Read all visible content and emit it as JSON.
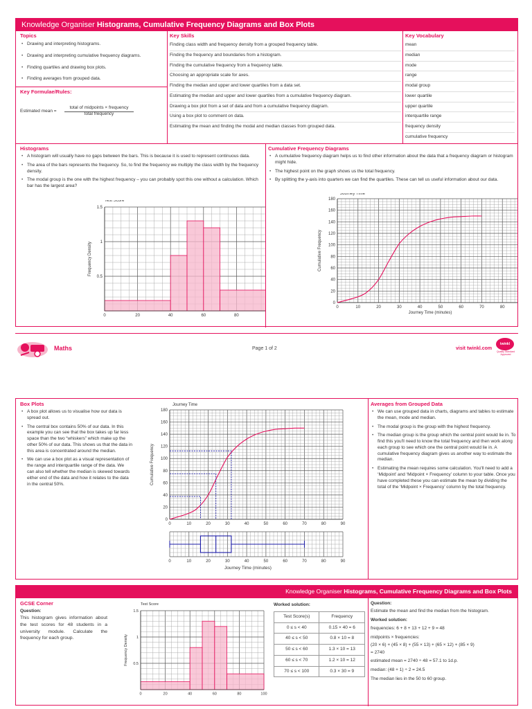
{
  "page1": {
    "title_pre": "Knowledge Organiser ",
    "title_bold": "Histograms, Cumulative Frequency Diagrams and Box Plots",
    "topics": {
      "heading": "Topics",
      "items": [
        "Drawing and interpreting histograms.",
        "Drawing and interpreting cumulative frequency diagrams.",
        "Finding quartiles and drawing box plots.",
        "Finding averages from grouped data."
      ]
    },
    "formulae": {
      "heading": "Key Formulae/Rules:",
      "lhs": "Estimated mean =",
      "numerator": "total of midpoints × frequency",
      "denominator": "total frequency"
    },
    "skills": {
      "heading": "Key Skills",
      "items": [
        "Finding class width and frequency density from a grouped frequency table.",
        "Finding the frequency and boundaries from a histogram.",
        "Finding the cumulative frequency from a frequency table.",
        "Choosing an appropriate scale for axes.",
        "Finding the median and upper and lower quartiles from a data set.",
        "Estimating the median and upper and lower quartiles from a cumulative frequency diagram.",
        "Drawing a box plot from a set of data and from a cumulative frequency diagram.",
        "Using a box plot to comment on data.",
        "Estimating the mean and finding the modal and median classes from grouped data."
      ]
    },
    "vocab": {
      "heading": "Key Vocabulary",
      "items": [
        "mean",
        "median",
        "mode",
        "range",
        "modal group",
        "lower quartile",
        "upper quartile",
        "interquartile range",
        "frequency density",
        "cumulative frequency"
      ]
    },
    "histograms": {
      "heading": "Histograms",
      "items": [
        "A histogram will usually have no gaps between the bars. This is because it is used to represent continuous data.",
        "The area of the bars represents the frequency. So, to find the frequency we multiply the class width by the frequency density.",
        "The modal group is the one with the highest frequency – you can probably spot this one without a calculation. Which bar has the largest area?"
      ]
    },
    "cumfreq": {
      "heading": "Cumulative Frequency Diagrams",
      "items": [
        "A cumulative frequency diagram helps us to find other information about the data that a frequency diagram or histogram might hide.",
        "The highest point on the graph shows us the total frequency.",
        "By splitting the y-axis into quarters we can find the quartiles. These can tell us useful information about our data."
      ]
    }
  },
  "footer": {
    "subject": "Maths",
    "page": "Page 1 of 2",
    "site": "visit twinkl.com",
    "logo_text": "twinkl",
    "logo_sub": "Quality Standard Approved"
  },
  "page2": {
    "boxplots": {
      "heading": "Box Plots",
      "items": [
        "A box plot allows us to visualise how our data is spread out.",
        "The central box contains 50% of our data. In this example you can see that the box takes up far less space than the two “whiskers” which make up the other 50% of our data. This shows us that the data in this area is concentrated around the median.",
        "We can use a box plot as a visual representation of the range and interquartile range of the data. We can also tell whether the median is skewed towards either end of the data and how it relates to the data in the central 50%."
      ]
    },
    "averages": {
      "heading": "Averages from Grouped Data",
      "items": [
        "We can use grouped data in charts, diagrams and tables to estimate the mean, mode and median.",
        "The modal group is the group with the highest frequency.",
        "The median group is the group which the central point would lie in. To find this you'll need to know the total frequency and then work along each group to see which one the central point would lie in. A cumulative frequency diagram gives us another way to estimate the median.",
        "Estimating the mean requires some calculation. You'll need to add a ‘Midpoint’ and ‘Midpoint × Frequency’ column to your table. Once you have completed these you can estimate the mean by dividing the total of the ‘Midpoint × Frequency’ column by the total frequency."
      ]
    },
    "boxplot_xlabel": "Journey Time (minutes)"
  },
  "page3": {
    "title_pre": "Knowledge Organiser ",
    "title_bold": "Histograms, Cumulative Frequency Diagrams and Box Plots",
    "gcse": {
      "heading": "GCSE Corner",
      "question_label": "Question:",
      "question": "This histogram gives information about the test scores for 48 students in a university module. Calculate the frequency for each group."
    },
    "worked": {
      "heading": "Worked solution:",
      "col1": "Test Score(s)",
      "col2": "Frequency",
      "rows": [
        [
          "0 ≤ s < 40",
          "0.15 × 40 = 6"
        ],
        [
          "40 ≤ s < 50",
          "0.8 × 10 = 8"
        ],
        [
          "50 ≤ s < 60",
          "1.3 × 10 = 13"
        ],
        [
          "60 ≤ s < 70",
          "1.2 × 10 = 12"
        ],
        [
          "70 ≤ s < 100",
          "0.3 × 30 = 9"
        ]
      ]
    },
    "right": {
      "question_label": "Question:",
      "question": "Estimate the mean and find the median from the histogram.",
      "worked_label": "Worked solution:",
      "lines": [
        "frequencies: 6 + 8 + 13 + 12 + 9 = 48",
        "midpoints × frequencies:",
        "(20 × 6) + (45 × 8) + (55 × 13) + (65 × 12) + (85 × 9)",
        "= 2740",
        "estimated mean = 2740 ÷ 48 = 57.1 to 1d.p.",
        "median: (48 + 1) ÷ 2 = 24.5",
        "The median lies in the 50 to 60 group."
      ]
    }
  },
  "chart_data": [
    {
      "type": "bar",
      "id": "histogram",
      "title": "Test Score",
      "xlabel": "",
      "ylabel": "Frequency Density",
      "bins": [
        [
          0,
          40
        ],
        [
          40,
          50
        ],
        [
          50,
          60
        ],
        [
          60,
          70
        ],
        [
          70,
          100
        ]
      ],
      "values": [
        0.15,
        0.8,
        1.3,
        1.2,
        0.3
      ],
      "xticks": [
        0,
        20,
        40,
        60,
        80,
        100
      ],
      "yticks": [
        0.5,
        1,
        1.5
      ],
      "xlim": [
        0,
        100
      ],
      "ylim": [
        0,
        1.5
      ],
      "grid": true
    },
    {
      "type": "line",
      "id": "cumulative-frequency",
      "title": "Journey Time",
      "xlabel": "Journey Time (minutes)",
      "ylabel": "Cumulative Frequency",
      "x": [
        0,
        10,
        15,
        20,
        25,
        30,
        35,
        40,
        45,
        50,
        55,
        60,
        65,
        70
      ],
      "y": [
        0,
        10,
        20,
        40,
        72,
        102,
        120,
        132,
        140,
        145,
        148,
        149,
        150,
        150
      ],
      "xticks": [
        0,
        10,
        20,
        30,
        40,
        50,
        60,
        70,
        80,
        90
      ],
      "yticks": [
        0,
        20,
        40,
        60,
        80,
        100,
        120,
        140,
        160,
        180
      ],
      "xlim": [
        0,
        90
      ],
      "ylim": [
        0,
        180
      ],
      "grid": true
    },
    {
      "type": "line",
      "id": "box-plot",
      "title": "",
      "xlabel": "Journey Time (minutes)",
      "ylabel": "",
      "min": 0,
      "lower_quartile": 16,
      "median": 24,
      "upper_quartile": 32,
      "max": 70,
      "quartile_cf": [
        37.5,
        75,
        112.5
      ],
      "xticks": [
        0,
        10,
        20,
        30,
        40,
        50,
        60,
        70,
        80,
        90
      ],
      "xlim": [
        0,
        90
      ]
    }
  ]
}
